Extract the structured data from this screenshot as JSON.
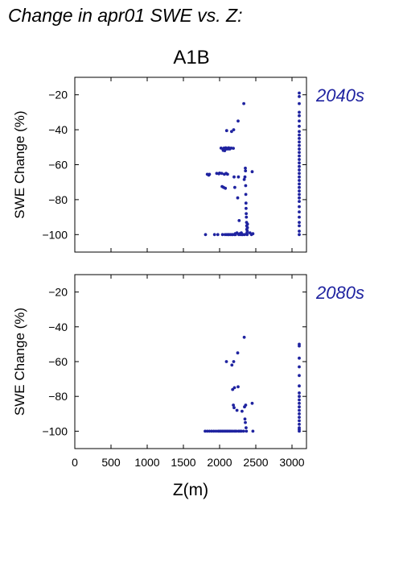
{
  "figure": {
    "title": "Change in apr01 SWE vs. Z:",
    "subtitle": "A1B"
  },
  "colors": {
    "points": "#1f23a0",
    "panel_label": "#1f23a0"
  },
  "chart_data": [
    {
      "type": "scatter",
      "panel_label": "2040s",
      "ylabel": "SWE Change (%)",
      "xlabel": "",
      "xlim": [
        0,
        3200
      ],
      "ylim": [
        -110,
        -10
      ],
      "yticks": [
        -20,
        -40,
        -60,
        -80,
        -100
      ],
      "yticklabels": [
        "−20",
        "−40",
        "−60",
        "−80",
        "−100"
      ],
      "xticks": [
        0,
        500,
        1000,
        1500,
        2000,
        2500,
        3000
      ],
      "xticklabels": [],
      "points": [
        [
          1805,
          -100
        ],
        [
          1830,
          -65.5
        ],
        [
          1850,
          -66
        ],
        [
          1860,
          -65.5
        ],
        [
          1930,
          -100
        ],
        [
          1960,
          -65
        ],
        [
          1975,
          -100
        ],
        [
          1990,
          -65.2
        ],
        [
          2000,
          -64.8
        ],
        [
          2020,
          -50.5
        ],
        [
          2030,
          -65
        ],
        [
          2035,
          -72.5
        ],
        [
          2040,
          -100
        ],
        [
          2045,
          -51
        ],
        [
          2050,
          -51.8
        ],
        [
          2055,
          -73
        ],
        [
          2060,
          -50.5
        ],
        [
          2065,
          -65.5
        ],
        [
          2070,
          -52
        ],
        [
          2075,
          -100
        ],
        [
          2080,
          -73.5
        ],
        [
          2085,
          -50.3
        ],
        [
          2090,
          -65
        ],
        [
          2095,
          -51
        ],
        [
          2098,
          -40.5
        ],
        [
          2100,
          -100
        ],
        [
          2105,
          -50.6
        ],
        [
          2110,
          -65.5
        ],
        [
          2115,
          -51
        ],
        [
          2120,
          -100
        ],
        [
          2125,
          -50.3
        ],
        [
          2130,
          -100
        ],
        [
          2140,
          -51
        ],
        [
          2150,
          -100
        ],
        [
          2160,
          -50.5
        ],
        [
          2165,
          -41
        ],
        [
          2170,
          -100
        ],
        [
          2180,
          -100
        ],
        [
          2190,
          -50.6
        ],
        [
          2195,
          -40
        ],
        [
          2200,
          -67
        ],
        [
          2205,
          -100
        ],
        [
          2210,
          -73
        ],
        [
          2215,
          -99.5
        ],
        [
          2220,
          -100
        ],
        [
          2240,
          -99
        ],
        [
          2250,
          -79
        ],
        [
          2255,
          -35
        ],
        [
          2260,
          -67
        ],
        [
          2265,
          -100
        ],
        [
          2270,
          -92
        ],
        [
          2280,
          -99.5
        ],
        [
          2290,
          -100
        ],
        [
          2300,
          -99
        ],
        [
          2310,
          -100
        ],
        [
          2320,
          -100
        ],
        [
          2335,
          -25
        ],
        [
          2340,
          -68.5
        ],
        [
          2345,
          -100
        ],
        [
          2350,
          -67
        ],
        [
          2355,
          -62
        ],
        [
          2358,
          -63.5
        ],
        [
          2360,
          -72
        ],
        [
          2362,
          -77
        ],
        [
          2364,
          -82
        ],
        [
          2366,
          -85
        ],
        [
          2368,
          -88
        ],
        [
          2370,
          -90
        ],
        [
          2372,
          -93
        ],
        [
          2374,
          -95
        ],
        [
          2376,
          -97
        ],
        [
          2378,
          -99
        ],
        [
          2380,
          -100
        ],
        [
          2382,
          -98
        ],
        [
          2384,
          -96
        ],
        [
          2386,
          -94
        ],
        [
          2420,
          -99
        ],
        [
          2440,
          -100
        ],
        [
          2450,
          -64
        ],
        [
          2460,
          -99.5
        ],
        [
          3100,
          -19
        ],
        [
          3100,
          -21
        ],
        [
          3100,
          -25
        ],
        [
          3100,
          -30
        ],
        [
          3100,
          -32
        ],
        [
          3100,
          -35
        ],
        [
          3100,
          -38
        ],
        [
          3100,
          -41
        ],
        [
          3100,
          -43
        ],
        [
          3100,
          -45
        ],
        [
          3100,
          -47
        ],
        [
          3100,
          -49
        ],
        [
          3100,
          -51
        ],
        [
          3100,
          -53
        ],
        [
          3100,
          -55
        ],
        [
          3100,
          -57
        ],
        [
          3100,
          -59
        ],
        [
          3100,
          -61
        ],
        [
          3100,
          -63
        ],
        [
          3100,
          -65
        ],
        [
          3100,
          -67
        ],
        [
          3100,
          -69
        ],
        [
          3100,
          -71
        ],
        [
          3100,
          -73
        ],
        [
          3100,
          -75
        ],
        [
          3100,
          -77
        ],
        [
          3100,
          -79
        ],
        [
          3100,
          -81
        ],
        [
          3100,
          -84
        ],
        [
          3100,
          -87
        ],
        [
          3100,
          -90
        ],
        [
          3100,
          -93
        ],
        [
          3100,
          -95
        ],
        [
          3100,
          -98
        ],
        [
          3100,
          -100
        ]
      ]
    },
    {
      "type": "scatter",
      "panel_label": "2080s",
      "ylabel": "SWE Change (%)",
      "xlabel": "Z(m)",
      "xlim": [
        0,
        3200
      ],
      "ylim": [
        -110,
        -10
      ],
      "yticks": [
        -20,
        -40,
        -60,
        -80,
        -100
      ],
      "yticklabels": [
        "−20",
        "−40",
        "−60",
        "−80",
        "−100"
      ],
      "xticks": [
        0,
        500,
        1000,
        1500,
        2000,
        2500,
        3000
      ],
      "xticklabels": [
        "0",
        "500",
        "1000",
        "1500",
        "2000",
        "2500",
        "3000"
      ],
      "points": [
        [
          1800,
          -100
        ],
        [
          1830,
          -100
        ],
        [
          1860,
          -100
        ],
        [
          1890,
          -100
        ],
        [
          1920,
          -100
        ],
        [
          1950,
          -100
        ],
        [
          1980,
          -100
        ],
        [
          2000,
          -100
        ],
        [
          2020,
          -100
        ],
        [
          2040,
          -100
        ],
        [
          2060,
          -100
        ],
        [
          2080,
          -100
        ],
        [
          2095,
          -60
        ],
        [
          2100,
          -100
        ],
        [
          2120,
          -100
        ],
        [
          2140,
          -100
        ],
        [
          2160,
          -100
        ],
        [
          2170,
          -62
        ],
        [
          2180,
          -76
        ],
        [
          2185,
          -100
        ],
        [
          2190,
          -85
        ],
        [
          2195,
          -60
        ],
        [
          2200,
          -86.5
        ],
        [
          2205,
          -75
        ],
        [
          2210,
          -100
        ],
        [
          2230,
          -100
        ],
        [
          2240,
          -88
        ],
        [
          2250,
          -55
        ],
        [
          2255,
          -74.5
        ],
        [
          2260,
          -100
        ],
        [
          2280,
          -100
        ],
        [
          2300,
          -100
        ],
        [
          2310,
          -88.5
        ],
        [
          2330,
          -100
        ],
        [
          2340,
          -46
        ],
        [
          2345,
          -86
        ],
        [
          2350,
          -93
        ],
        [
          2355,
          -95
        ],
        [
          2360,
          -85
        ],
        [
          2365,
          -98
        ],
        [
          2370,
          -100
        ],
        [
          2450,
          -84
        ],
        [
          2460,
          -100
        ],
        [
          3100,
          -50
        ],
        [
          3100,
          -51
        ],
        [
          3100,
          -58
        ],
        [
          3100,
          -63
        ],
        [
          3100,
          -68
        ],
        [
          3100,
          -74
        ],
        [
          3100,
          -78
        ],
        [
          3100,
          -80
        ],
        [
          3100,
          -82
        ],
        [
          3100,
          -84
        ],
        [
          3100,
          -86
        ],
        [
          3100,
          -88
        ],
        [
          3100,
          -90
        ],
        [
          3100,
          -92
        ],
        [
          3100,
          -94
        ],
        [
          3100,
          -96
        ],
        [
          3100,
          -98
        ],
        [
          3100,
          -99
        ],
        [
          3100,
          -100
        ]
      ]
    }
  ]
}
